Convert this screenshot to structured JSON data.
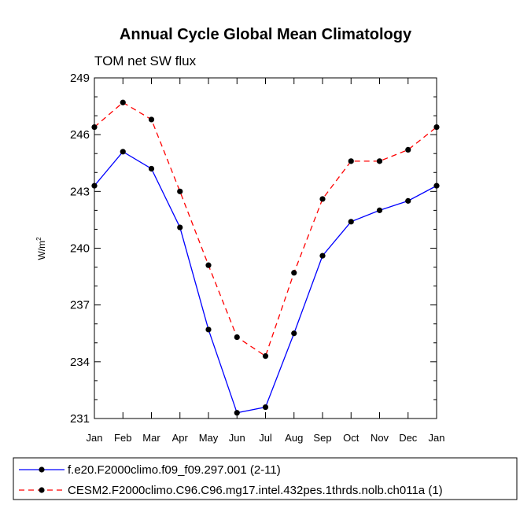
{
  "chart_data": {
    "type": "line",
    "title": "Annual Cycle Global Mean Climatology",
    "subtitle": "TOM net SW flux",
    "ylabel": "W/m",
    "ylabel_sup": "2",
    "xlabel": "",
    "categories": [
      "Jan",
      "Feb",
      "Mar",
      "Apr",
      "May",
      "Jun",
      "Jul",
      "Aug",
      "Sep",
      "Oct",
      "Nov",
      "Dec",
      "Jan"
    ],
    "ylim": [
      231,
      249
    ],
    "yticks": [
      231,
      234,
      237,
      240,
      243,
      246,
      249
    ],
    "series": [
      {
        "name": "f.e20.F2000climo.f09_f09.297.001 (2-11)",
        "color": "#0000ff",
        "dash": "solid",
        "marker": "circle",
        "values": [
          243.3,
          245.1,
          244.2,
          241.1,
          235.7,
          231.3,
          231.6,
          235.5,
          239.6,
          241.4,
          242.0,
          242.5,
          243.3
        ]
      },
      {
        "name": "CESM2.F2000climo.C96.C96.mg17.intel.432pes.1thrds.nolb.ch011a (1)",
        "color": "#ff0000",
        "dash": "dashed",
        "marker": "circle",
        "values": [
          246.4,
          247.7,
          246.8,
          243.0,
          239.1,
          235.3,
          234.3,
          238.7,
          242.6,
          244.6,
          244.6,
          245.2,
          246.4
        ]
      }
    ]
  }
}
